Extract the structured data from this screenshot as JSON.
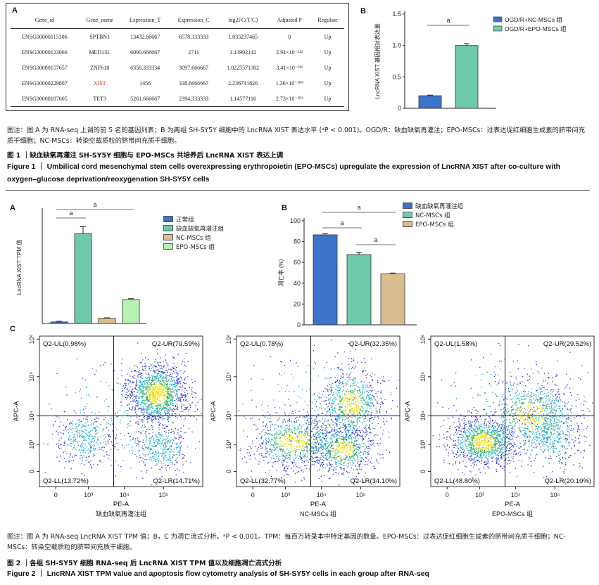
{
  "fig1": {
    "panel_a": {
      "letter": "A",
      "headers": [
        "Gene_id",
        "Gene_name",
        "Expression_T",
        "Expression_C",
        "log2FC(T/C)",
        "Adjusted P",
        "Regulate"
      ],
      "rows": [
        {
          "gene_id": "ENSG00000115306",
          "gene_name": "SPTBN1",
          "expr_t": "13432.66667",
          "expr_c": "6578.333333",
          "log2fc": "1.035237465",
          "padj": "0",
          "reg": "Up"
        },
        {
          "gene_id": "ENSG00000123066",
          "gene_name": "MED13L",
          "expr_t": "6090.666667",
          "expr_c": "2711",
          "log2fc": "1.13992142",
          "padj": "2.91×10⁻²⁴²",
          "reg": "Up"
        },
        {
          "gene_id": "ENSG00000157657",
          "gene_name": "ZNF618",
          "expr_t": "6358.333334",
          "expr_c": "3097.666667",
          "log2fc": "1.0225571302",
          "padj": "3.41×10⁻²²¹",
          "reg": "Up"
        },
        {
          "gene_id": "ENSG00000229807",
          "gene_name": "XIST",
          "expr_t": "1456",
          "expr_c": "338.6666667",
          "log2fc": "2.236741826",
          "padj": "1.36×10⁻²⁰⁹",
          "reg": "Up"
        },
        {
          "gene_id": "ENSG00000187605",
          "gene_name": "TET3",
          "expr_t": "5261.666667",
          "expr_c": "2394.333333",
          "log2fc": "1.14577116",
          "padj": "2.73×10⁻²⁰²",
          "reg": "Up"
        }
      ],
      "highlight_color": "#c0392b"
    },
    "panel_b": {
      "letter": "B",
      "sig_mark": "a",
      "chart_data": {
        "type": "bar",
        "categories": [
          "OGD/R+NC-MSCs 组",
          "OGD/R+EPO-MSCs 组"
        ],
        "values": [
          0.2,
          1.0
        ],
        "errors": [
          0.01,
          0.03
        ],
        "colors": [
          "#3d73c9",
          "#6ec9ad"
        ],
        "ylabel": "LncRNA XIST 基因相对表达量",
        "ylim": [
          0,
          1.5
        ],
        "yticks": [
          "0",
          "0.5",
          "1.0",
          "1.5"
        ],
        "legend": [
          "OGD/R+NC-MSCs 组",
          "OGD/R+EPO-MSCs 组"
        ],
        "legend_position": "top-right"
      }
    },
    "caption": "图注：图 A 为 RNA-seq 上调的前 5 名的基因列表；B 为两组 SH-SY5Y 细胞中的 LncRNA XIST 表达水平 (ᵃP < 0.001)。OGD/R：缺血缺氧再灌注；EPO-MSCs：过表达促红细胞生成素的脐带间充质干细胞；NC-MSCs：转染空载质粒的脐带间充质干细胞。",
    "title_cn": "图 1 ｜缺血缺氧再灌注 SH-SY5Y 细胞与 EPO-MSCs 共培养后 LncRNA XIST 表达上调",
    "title_en": "Figure 1 ｜ Umbilical cord mesenchymal stem cells overexpressing erythropoietin (EPO-MSCs) upregulate the expression of LncRNA XIST after co-culture with oxygen–glucose deprivation/reoxygenation SH-SY5Y cells"
  },
  "fig2": {
    "panel_a": {
      "letter": "A",
      "sig_mark": "a",
      "chart_data": {
        "type": "bar",
        "categories": [
          "正常组",
          "缺血缺氧再灌注组",
          "NC-MSCs 组",
          "EPO-MSCs 组"
        ],
        "values": [
          0.2,
          12.0,
          0.7,
          3.2
        ],
        "errors": [
          0.1,
          0.9,
          0.05,
          0.1
        ],
        "colors": [
          "#3d73c9",
          "#6ec9ad",
          "#d8bd8f",
          "#b9f0b4"
        ],
        "ylabel": "LncRNA XIST TPM 值",
        "ylim": [
          0,
          15
        ],
        "legend": [
          "正常组",
          "缺血缺氧再灌注组",
          "NC-MSCs 组",
          "EPO-MSCs 组"
        ],
        "legend_position": "right"
      }
    },
    "panel_b": {
      "letter": "B",
      "sig_mark": "a",
      "chart_data": {
        "type": "bar",
        "categories": [
          "缺血缺氧再灌注组",
          "NC-MSCs 组",
          "EPO-MSCs 组"
        ],
        "values": [
          86.5,
          67.5,
          49.0
        ],
        "errors": [
          1.2,
          2.0,
          0.8
        ],
        "colors": [
          "#3d73c9",
          "#6ec9ad",
          "#d8bd8f"
        ],
        "ylabel": "凋亡率 (%)",
        "ylim": [
          0,
          100
        ],
        "yticks": [
          "0",
          "20",
          "40",
          "60",
          "80",
          "100"
        ],
        "legend": [
          "缺血缺氧再灌注组",
          "NC-MSCs 组",
          "EPO-MSCs 组"
        ],
        "legend_position": "top-right"
      }
    },
    "panel_c": {
      "letter": "C",
      "xlabel": "PE-A",
      "ylabel": "APC-A",
      "ticks": [
        "0",
        "10³",
        "10⁴",
        "10⁵"
      ],
      "yticks": [
        "0",
        "10³",
        "10⁴",
        "10⁵",
        "10⁶"
      ],
      "plots": [
        {
          "name": "缺血缺氧再灌注组",
          "ul": "Q2-UL(0.98%)",
          "ur": "Q2-UR(70.59%)",
          "ll": "Q2-LL(13.72%)",
          "lr": "Q2-LR(14.71%)"
        },
        {
          "name": "NC-MSCs 组",
          "ul": "Q2-UL(0.78%)",
          "ur": "Q2-UR(32.35%)",
          "ll": "Q2-LL(32.77%)",
          "lr": "Q2-LR(34.10%)"
        },
        {
          "name": "EPO-MSCs 组",
          "ul": "Q2-UL(1.58%)",
          "ur": "Q2-UR(29.52%)",
          "ll": "Q2-LL(48.80%)",
          "lr": "Q2-LR(20.10%)"
        }
      ]
    },
    "caption": "图注：图 A 为 RNA-seq LncRNA XIST TPM 值；B，C 为凋亡流式分析。ᵃP < 0.001。TPM：每百万转录本中特定基因的数量。EPO-MSCs：过表达促红细胞生成素的脐带间充质干细胞；NC-MSCs：转染空载质粒的脐带间充质干细胞。",
    "title_cn": "图 2 ｜各组 SH-SY5Y 细胞 RNA-seq 后 LncRNA XIST TPM 值以及细胞凋亡流式分析",
    "title_en": "Figure 2 ｜ LncRNA XIST TPM value and apoptosis flow cytometry analysis of SH-SY5Y cells in each group after RNA-seq"
  }
}
